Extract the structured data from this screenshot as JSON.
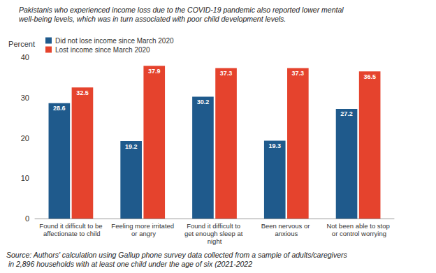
{
  "chart_data": {
    "type": "bar",
    "title": "Pakistanis who experienced income loss due to the COVID-19 pandemic also reported lower mental well-being levels, which was in turn associated with poor child development levels.",
    "ylabel": "Percent",
    "source": "Source: Authors' calculation using Gallup phone survey data collected from a sample of adults/caregivers in 2,896 households with at least one child under the age of six (2021-2022",
    "categories": [
      "Found it difficult to be affectionate to child",
      "Feeling more irritated or angry",
      "Found it difficult to get enough sleep at night",
      "Been nervous or anxious",
      "Not been able to stop or control worrying"
    ],
    "series": [
      {
        "name": "Did not lose income since March 2020",
        "color": "#1f5a8c",
        "values": [
          28.6,
          19.2,
          30.2,
          19.3,
          27.2
        ]
      },
      {
        "name": "Lost income since March 2020",
        "color": "#e5432d",
        "values": [
          32.5,
          37.9,
          37.3,
          37.3,
          36.5
        ]
      }
    ],
    "ylim": [
      0,
      40
    ],
    "yticks": [
      0,
      10,
      20,
      30,
      40
    ],
    "grid": false,
    "legend": "top-left",
    "data_labels": true
  }
}
